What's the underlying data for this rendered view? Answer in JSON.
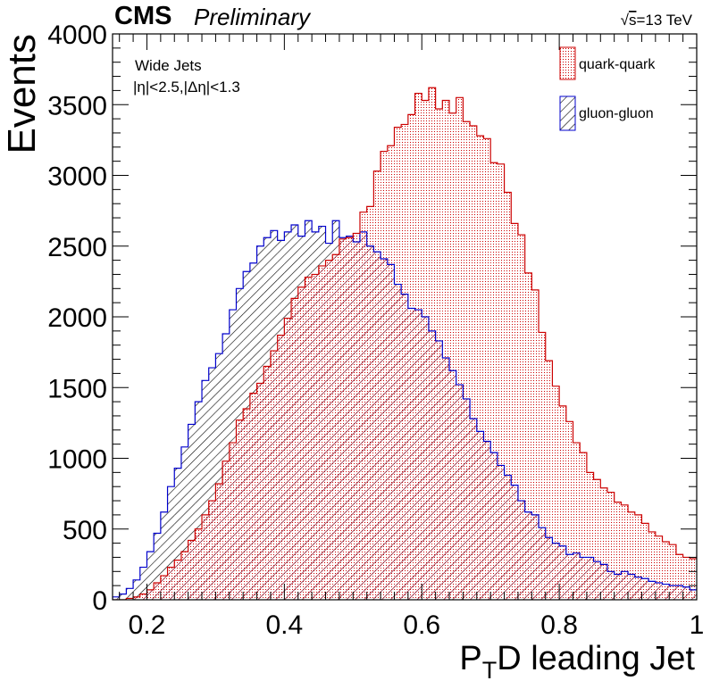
{
  "header": {
    "experiment": "CMS",
    "status": "Preliminary",
    "energy_sqrt": "√",
    "energy_s": "s",
    "energy_rest": "=13 TeV"
  },
  "annotation": {
    "line1": "Wide Jets",
    "line2": "|η|<2.5,|Δη|<1.3"
  },
  "colors": {
    "quark": "#cc0000",
    "gluon": "#0000cc",
    "axis": "#000000"
  },
  "chart_data": {
    "type": "area",
    "histogram": true,
    "xlabel_main": "P",
    "xlabel_sub": "T",
    "xlabel_rest": "D leading Jet",
    "ylabel": "Events",
    "xlim": [
      0.15,
      1.0
    ],
    "ylim": [
      0,
      4000
    ],
    "x_ticks": [
      0.2,
      0.4,
      0.6,
      0.8,
      1.0
    ],
    "x_tick_labels": [
      "0.2",
      "0.4",
      "0.6",
      "0.8",
      "1"
    ],
    "y_ticks": [
      0,
      500,
      1000,
      1500,
      2000,
      2500,
      3000,
      3500,
      4000
    ],
    "y_tick_labels": [
      "0",
      "500",
      "1000",
      "1500",
      "2000",
      "2500",
      "3000",
      "3500",
      "4000"
    ],
    "grid": false,
    "legend_position": "top-right",
    "bin_width": 0.01,
    "bin_start": 0.15,
    "series": [
      {
        "name": "quark-quark",
        "fill": "dotted",
        "values": [
          0,
          0,
          10,
          20,
          40,
          70,
          120,
          170,
          230,
          280,
          340,
          420,
          500,
          600,
          700,
          820,
          980,
          1110,
          1270,
          1350,
          1460,
          1530,
          1650,
          1760,
          1870,
          1990,
          2130,
          2210,
          2280,
          2300,
          2360,
          2400,
          2440,
          2550,
          2560,
          2590,
          2740,
          2780,
          3030,
          3170,
          3210,
          3340,
          3360,
          3430,
          3580,
          3530,
          3620,
          3470,
          3530,
          3440,
          3550,
          3380,
          3350,
          3280,
          3260,
          3090,
          3080,
          2880,
          2660,
          2580,
          2310,
          2190,
          1890,
          1690,
          1510,
          1370,
          1260,
          1110,
          1040,
          900,
          850,
          790,
          760,
          690,
          670,
          620,
          600,
          540,
          480,
          450,
          410,
          390,
          320,
          300,
          290,
          310,
          270,
          250,
          210,
          220,
          190,
          150,
          120,
          110,
          90,
          50,
          40,
          20,
          10,
          5
        ]
      },
      {
        "name": "gluon-gluon",
        "fill": "hatched",
        "values": [
          20,
          40,
          80,
          140,
          230,
          340,
          470,
          620,
          800,
          930,
          1080,
          1240,
          1400,
          1550,
          1640,
          1740,
          1880,
          2050,
          2200,
          2320,
          2380,
          2500,
          2560,
          2610,
          2540,
          2600,
          2650,
          2570,
          2680,
          2600,
          2640,
          2520,
          2680,
          2560,
          2570,
          2530,
          2600,
          2500,
          2460,
          2410,
          2370,
          2230,
          2160,
          2060,
          2050,
          2000,
          1900,
          1830,
          1710,
          1620,
          1520,
          1420,
          1280,
          1190,
          1120,
          1040,
          950,
          880,
          810,
          700,
          620,
          600,
          510,
          440,
          400,
          380,
          320,
          330,
          300,
          300,
          270,
          250,
          200,
          180,
          200,
          180,
          160,
          150,
          130,
          120,
          110,
          100,
          100,
          90,
          70,
          80,
          60,
          70,
          50,
          50,
          40,
          30,
          30,
          20,
          20,
          10,
          10,
          5,
          5,
          0
        ]
      },
      {
        "name": "",
        "fill": "overlap",
        "values": [
          0,
          0,
          10,
          20,
          40,
          70,
          120,
          170,
          230,
          280,
          340,
          420,
          500,
          600,
          700,
          820,
          980,
          1110,
          1270,
          1350,
          1460,
          1530,
          1650,
          1760,
          1870,
          1990,
          2130,
          2210,
          2280,
          2300,
          2360,
          2400,
          2440,
          2550,
          2560,
          2530,
          2600,
          2500,
          2460,
          2410,
          2370,
          2230,
          2160,
          2060,
          2050,
          2000,
          1900,
          1830,
          1710,
          1620,
          1520,
          1420,
          1280,
          1190,
          1120,
          1040,
          950,
          880,
          810,
          700,
          620,
          600,
          510,
          440,
          400,
          380,
          320,
          330,
          300,
          300,
          270,
          250,
          200,
          180,
          200,
          180,
          160,
          150,
          130,
          120,
          110,
          100,
          100,
          90,
          70,
          80,
          60,
          70,
          50,
          50,
          40,
          30,
          30,
          20,
          20,
          10,
          10,
          5,
          5,
          0
        ]
      }
    ]
  }
}
